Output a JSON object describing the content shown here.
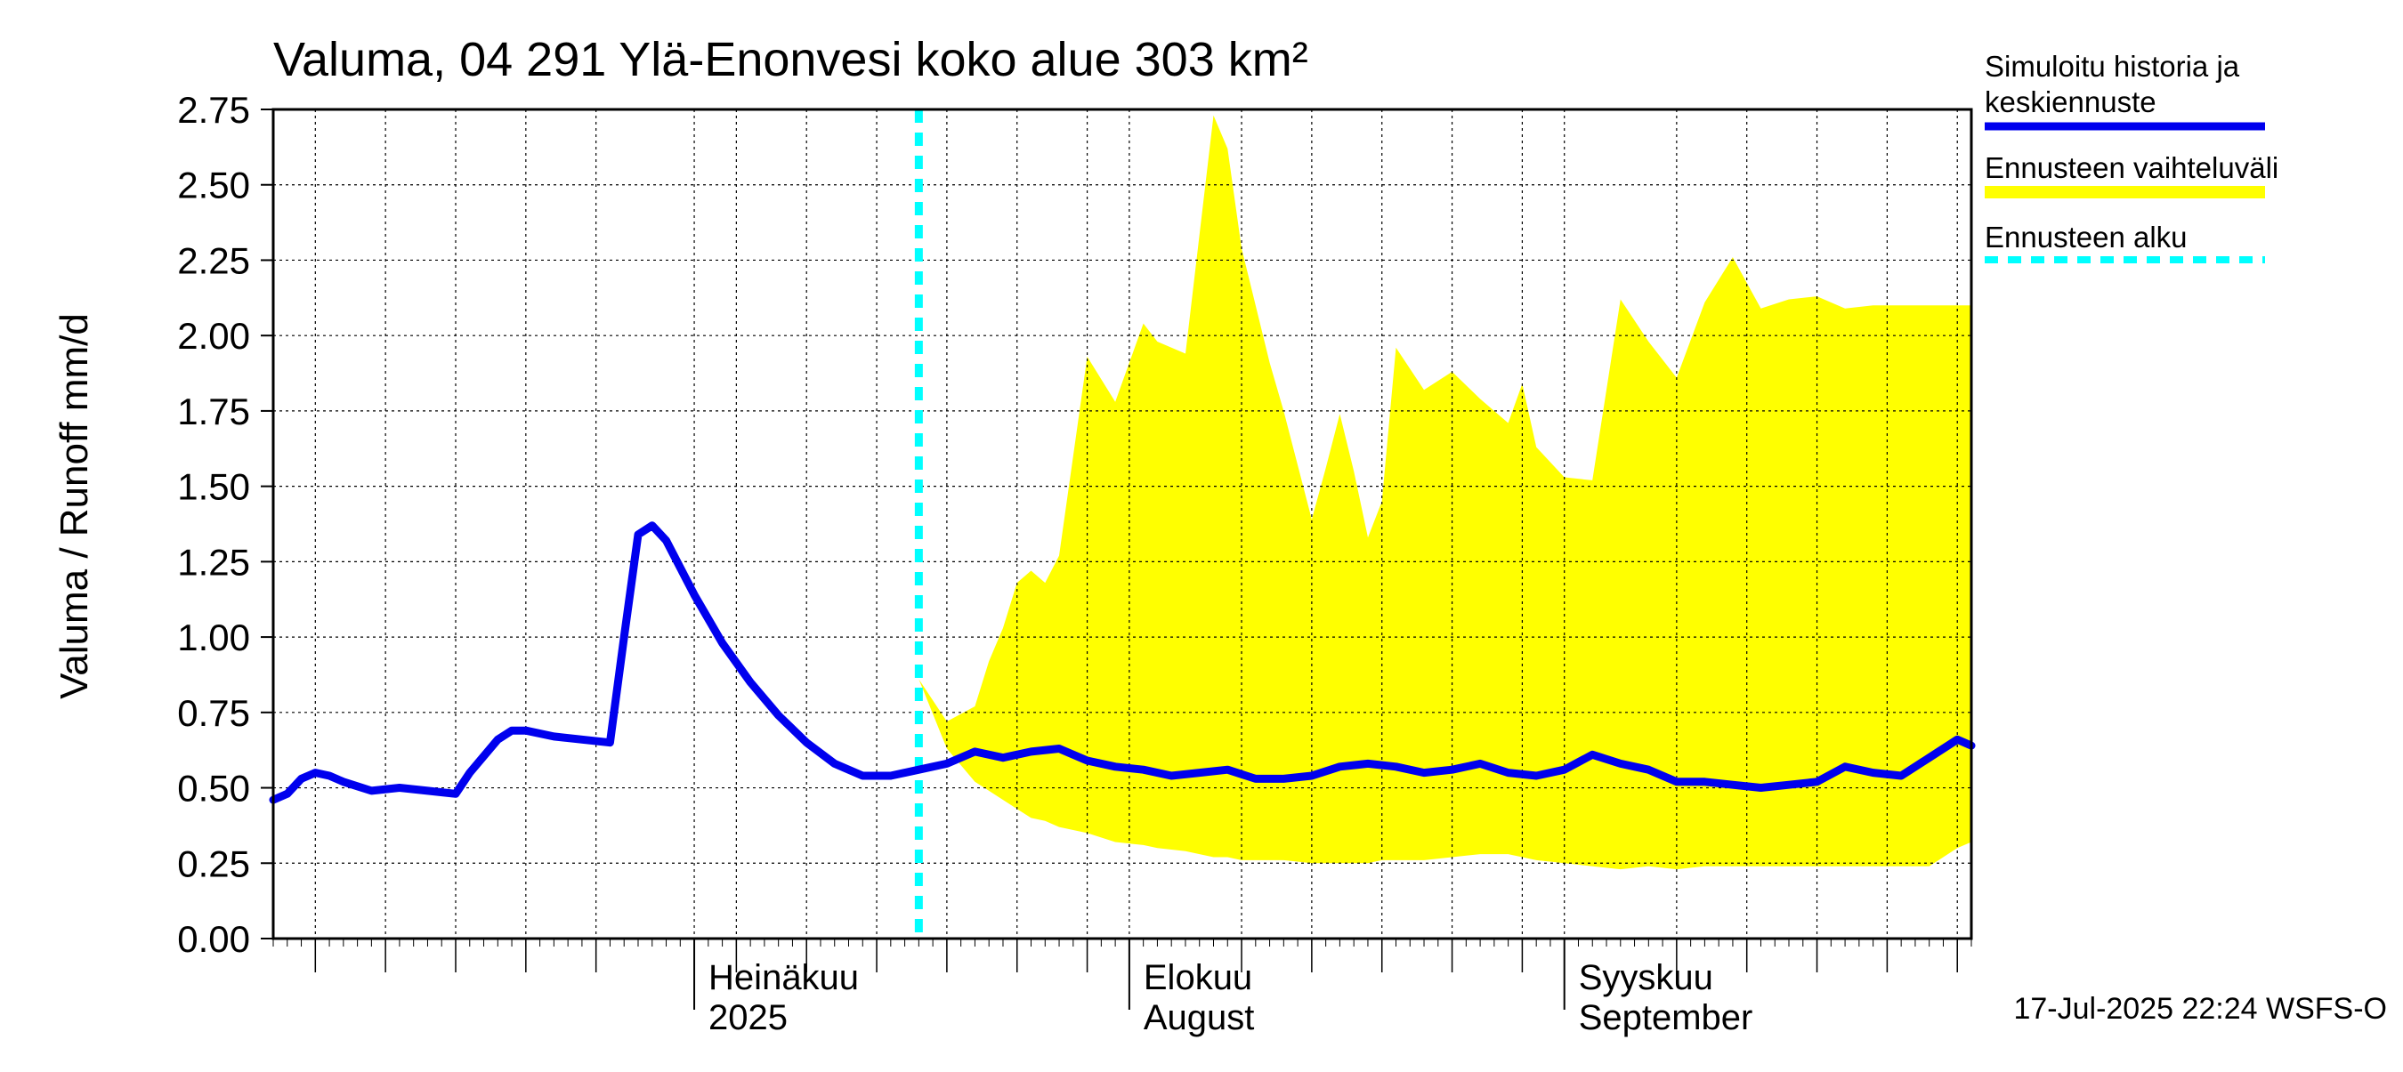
{
  "chart_data": {
    "type": "area",
    "title": "Valuma, 04 291 Ylä-Enonvesi koko alue 303 km²",
    "ylabel": "Valuma / Runoff    mm/d",
    "xlabel": "",
    "ylim": [
      0,
      2.75
    ],
    "xlim": [
      "2025-06-01",
      "2025-09-30"
    ],
    "y_ticks": [
      "0.00",
      "0.25",
      "0.50",
      "0.75",
      "1.00",
      "1.25",
      "1.50",
      "1.75",
      "2.00",
      "2.25",
      "2.50",
      "2.75"
    ],
    "x_tick_dates": [
      "2025-06-04",
      "2025-06-09",
      "2025-06-14",
      "2025-06-19",
      "2025-06-24",
      "2025-07-04",
      "2025-07-09",
      "2025-07-14",
      "2025-07-19",
      "2025-07-24",
      "2025-07-29",
      "2025-08-09",
      "2025-08-14",
      "2025-08-19",
      "2025-08-24",
      "2025-08-29",
      "2025-09-09",
      "2025-09-14",
      "2025-09-19",
      "2025-09-24",
      "2025-09-29"
    ],
    "month_labels": [
      {
        "date": "2025-07-01",
        "line1": "Heinäkuu",
        "line2": "2025"
      },
      {
        "date": "2025-08-01",
        "line1": "Elokuu",
        "line2": "August"
      },
      {
        "date": "2025-09-01",
        "line1": "Syyskuu",
        "line2": "September"
      }
    ],
    "forecast_start": "2025-07-17",
    "grid": true,
    "legend_position": "right",
    "colors": {
      "history": "#0000ee",
      "range": "#ffff00",
      "forecast_start": "#00ffff",
      "grid": "#000000"
    },
    "series": [
      {
        "name": "Simuloitu historia ja keskiennuste",
        "x": [
          "2025-06-01",
          "2025-06-02",
          "2025-06-03",
          "2025-06-04",
          "2025-06-05",
          "2025-06-06",
          "2025-06-08",
          "2025-06-10",
          "2025-06-12",
          "2025-06-14",
          "2025-06-15",
          "2025-06-17",
          "2025-06-18",
          "2025-06-19",
          "2025-06-21",
          "2025-06-23",
          "2025-06-25",
          "2025-06-26",
          "2025-06-27",
          "2025-06-28",
          "2025-06-29",
          "2025-07-01",
          "2025-07-03",
          "2025-07-05",
          "2025-07-07",
          "2025-07-09",
          "2025-07-11",
          "2025-07-13",
          "2025-07-15",
          "2025-07-17",
          "2025-07-19",
          "2025-07-21",
          "2025-07-23",
          "2025-07-25",
          "2025-07-27",
          "2025-07-29",
          "2025-07-31",
          "2025-08-02",
          "2025-08-04",
          "2025-08-06",
          "2025-08-08",
          "2025-08-10",
          "2025-08-12",
          "2025-08-14",
          "2025-08-16",
          "2025-08-18",
          "2025-08-20",
          "2025-08-22",
          "2025-08-24",
          "2025-08-26",
          "2025-08-28",
          "2025-08-30",
          "2025-09-01",
          "2025-09-03",
          "2025-09-05",
          "2025-09-07",
          "2025-09-09",
          "2025-09-11",
          "2025-09-13",
          "2025-09-15",
          "2025-09-17",
          "2025-09-19",
          "2025-09-21",
          "2025-09-23",
          "2025-09-25",
          "2025-09-27",
          "2025-09-29",
          "2025-09-30"
        ],
        "values": [
          0.46,
          0.48,
          0.53,
          0.55,
          0.54,
          0.52,
          0.49,
          0.5,
          0.49,
          0.48,
          0.55,
          0.66,
          0.69,
          0.69,
          0.67,
          0.66,
          0.65,
          1.0,
          1.34,
          1.37,
          1.32,
          1.14,
          0.98,
          0.85,
          0.74,
          0.65,
          0.58,
          0.54,
          0.54,
          0.56,
          0.58,
          0.62,
          0.6,
          0.62,
          0.63,
          0.59,
          0.57,
          0.56,
          0.54,
          0.55,
          0.56,
          0.53,
          0.53,
          0.54,
          0.57,
          0.58,
          0.57,
          0.55,
          0.56,
          0.58,
          0.55,
          0.54,
          0.56,
          0.61,
          0.58,
          0.56,
          0.52,
          0.52,
          0.51,
          0.5,
          0.51,
          0.52,
          0.57,
          0.55,
          0.54,
          0.6,
          0.66,
          0.64
        ]
      },
      {
        "name": "Ennusteen vaihteluväli",
        "x": [
          "2025-07-17",
          "2025-07-19",
          "2025-07-21",
          "2025-07-22",
          "2025-07-23",
          "2025-07-24",
          "2025-07-25",
          "2025-07-26",
          "2025-07-27",
          "2025-07-29",
          "2025-07-31",
          "2025-08-02",
          "2025-08-03",
          "2025-08-05",
          "2025-08-07",
          "2025-08-08",
          "2025-08-09",
          "2025-08-11",
          "2025-08-12",
          "2025-08-14",
          "2025-08-15",
          "2025-08-16",
          "2025-08-17",
          "2025-08-18",
          "2025-08-19",
          "2025-08-20",
          "2025-08-22",
          "2025-08-24",
          "2025-08-26",
          "2025-08-28",
          "2025-08-29",
          "2025-08-30",
          "2025-09-01",
          "2025-09-03",
          "2025-09-05",
          "2025-09-07",
          "2025-09-09",
          "2025-09-11",
          "2025-09-13",
          "2025-09-15",
          "2025-09-17",
          "2025-09-19",
          "2025-09-21",
          "2025-09-23",
          "2025-09-25",
          "2025-09-27",
          "2025-09-29",
          "2025-09-30"
        ],
        "upper": [
          0.86,
          0.72,
          0.77,
          0.92,
          1.03,
          1.18,
          1.22,
          1.18,
          1.27,
          1.93,
          1.78,
          2.04,
          1.98,
          1.94,
          2.73,
          2.62,
          2.29,
          1.91,
          1.75,
          1.39,
          1.56,
          1.74,
          1.55,
          1.33,
          1.45,
          1.96,
          1.82,
          1.88,
          1.79,
          1.71,
          1.84,
          1.63,
          1.53,
          1.52,
          2.12,
          1.98,
          1.86,
          2.11,
          2.26,
          2.09,
          2.12,
          2.13,
          2.09,
          2.1,
          2.1,
          2.1,
          2.1,
          2.1
        ],
        "lower": [
          0.86,
          0.63,
          0.52,
          0.49,
          0.46,
          0.43,
          0.4,
          0.39,
          0.37,
          0.35,
          0.32,
          0.31,
          0.3,
          0.29,
          0.27,
          0.27,
          0.26,
          0.26,
          0.26,
          0.25,
          0.25,
          0.25,
          0.25,
          0.25,
          0.26,
          0.26,
          0.26,
          0.27,
          0.28,
          0.28,
          0.27,
          0.26,
          0.25,
          0.24,
          0.23,
          0.24,
          0.23,
          0.24,
          0.24,
          0.24,
          0.24,
          0.24,
          0.24,
          0.24,
          0.24,
          0.24,
          0.3,
          0.32
        ]
      }
    ],
    "legend": [
      {
        "label": "Simuloitu historia ja keskiennuste",
        "style": "line",
        "color": "#0000ee"
      },
      {
        "label": "Ennusteen vaihteluväli",
        "style": "band",
        "color": "#ffff00"
      },
      {
        "label": "Ennusteen alku",
        "style": "dashed",
        "color": "#00ffff"
      }
    ],
    "footer": "17-Jul-2025 22:24 WSFS-O"
  }
}
